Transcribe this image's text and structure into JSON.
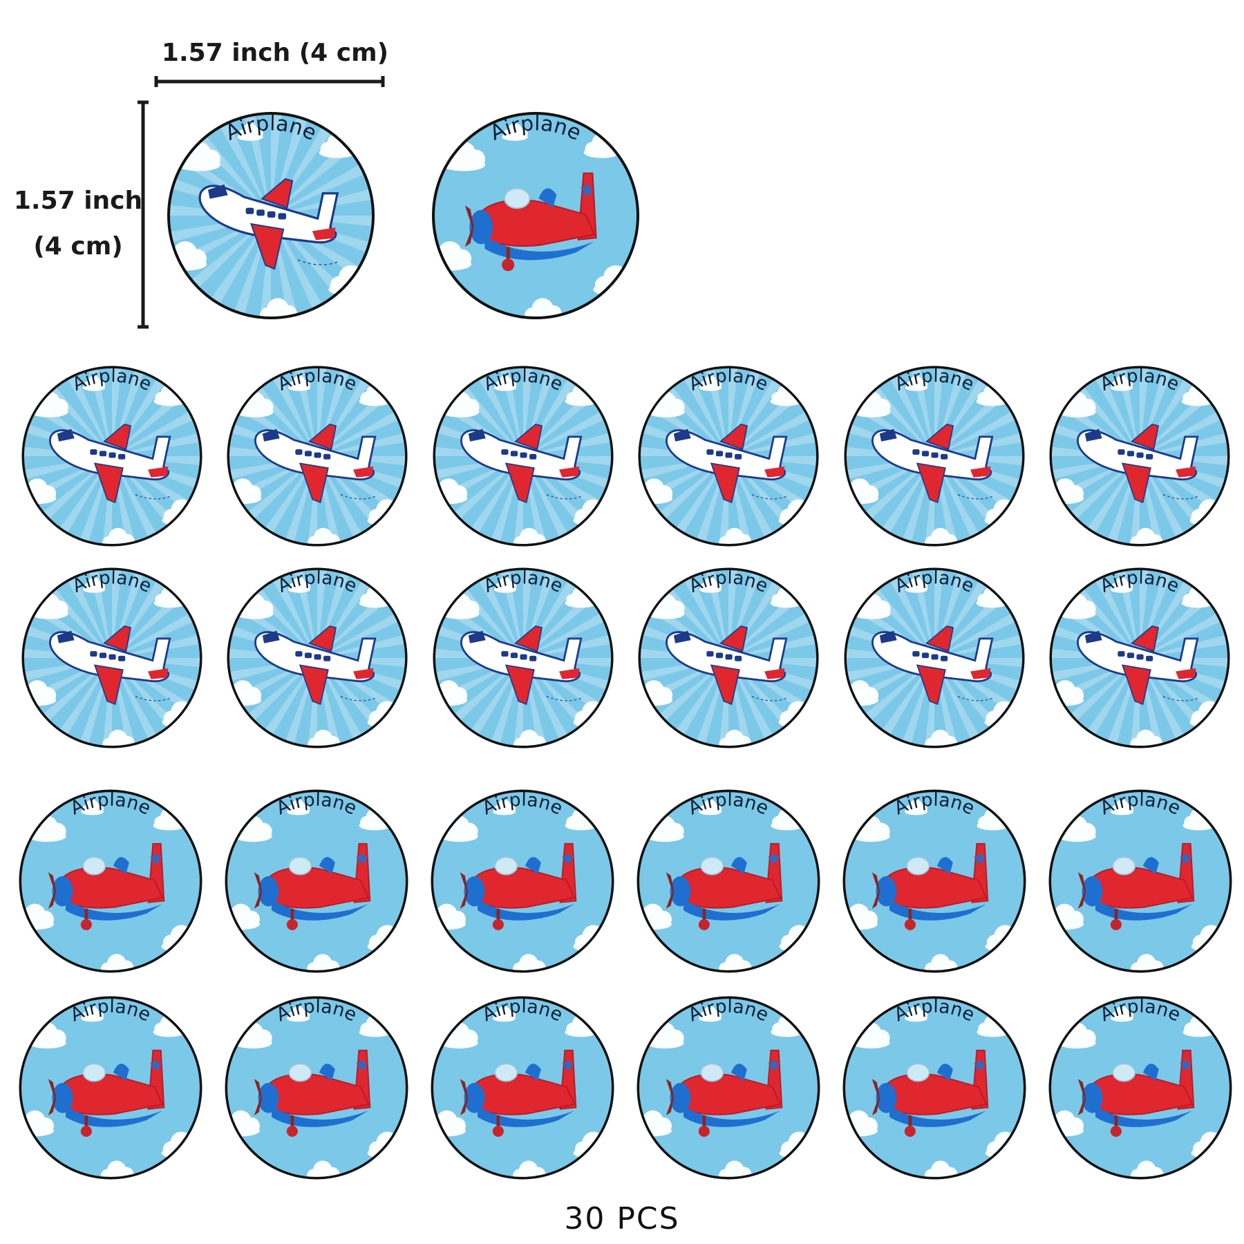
{
  "dimensions": {
    "width_label": "1.57 inch (4 cm)",
    "height_label_line1": "1.57 inch",
    "height_label_line2": "(4 cm)"
  },
  "sticker_text": "Airplane",
  "sticker_rows": [
    [
      "jet",
      "biplane"
    ],
    [
      "jet",
      "jet",
      "jet",
      "jet",
      "jet",
      "jet"
    ],
    [
      "jet",
      "jet",
      "jet",
      "jet",
      "jet",
      "jet"
    ],
    [
      "biplane",
      "biplane",
      "biplane",
      "biplane",
      "biplane",
      "biplane"
    ],
    [
      "biplane",
      "biplane",
      "biplane",
      "biplane",
      "biplane",
      "biplane"
    ]
  ],
  "total_label": "30 PCS",
  "colors": {
    "sky": "#7cc8e8",
    "cloud": "#ffffff",
    "plane_red": "#e0262f",
    "plane_blue": "#1e6fd0",
    "outline": "#1d3a8a",
    "ring": "#111111"
  }
}
